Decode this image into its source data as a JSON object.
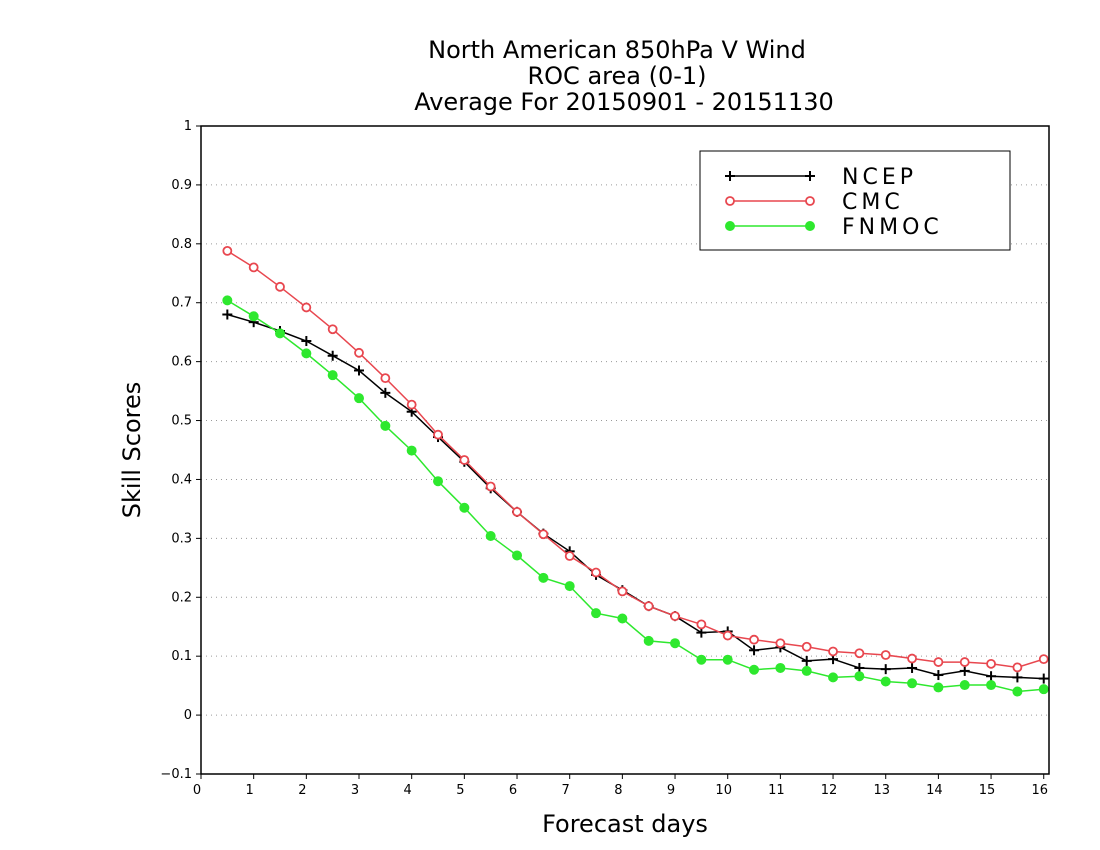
{
  "chart_data": {
    "type": "line",
    "title": "North American 850hPa V Wind",
    "subtitle": "ROC area (0-1)",
    "subtitle2": "Average For 20150901 - 20151130",
    "xlabel": "Forecast days",
    "ylabel": "Skill Scores",
    "xlim": [
      0,
      16.1
    ],
    "ylim": [
      -0.1,
      1
    ],
    "xticks": [
      0,
      1,
      2,
      3,
      4,
      5,
      6,
      7,
      8,
      9,
      10,
      11,
      12,
      13,
      14,
      15,
      16
    ],
    "yticks": [
      -0.1,
      0,
      0.1,
      0.2,
      0.3,
      0.4,
      0.5,
      0.6,
      0.7,
      0.8,
      0.9,
      1
    ],
    "ytick_labels": [
      "−0.1",
      "0",
      "0.1",
      "0.2",
      "0.3",
      "0.4",
      "0.5",
      "0.6",
      "0.7",
      "0.8",
      "0.9",
      "1"
    ],
    "grid": "horizontal dotted",
    "legend_position": "top-right",
    "x": [
      0.5,
      1,
      1.5,
      2,
      2.5,
      3,
      3.5,
      4,
      4.5,
      5,
      5.5,
      6,
      6.5,
      7,
      7.5,
      8,
      8.5,
      9,
      9.5,
      10,
      10.5,
      11,
      11.5,
      12,
      12.5,
      13,
      13.5,
      14,
      14.5,
      15,
      15.5,
      16
    ],
    "series": [
      {
        "name": "NCEP",
        "color": "#000000",
        "marker": "plus",
        "values": [
          0.68,
          0.667,
          0.652,
          0.635,
          0.61,
          0.585,
          0.547,
          0.515,
          0.472,
          0.43,
          0.385,
          0.345,
          0.308,
          0.278,
          0.238,
          0.212,
          0.185,
          0.168,
          0.14,
          0.142,
          0.11,
          0.115,
          0.092,
          0.095,
          0.08,
          0.078,
          0.08,
          0.068,
          0.075,
          0.066,
          0.064,
          0.062
        ]
      },
      {
        "name": "CMC",
        "color": "#e8474f",
        "marker": "open-circle",
        "values": [
          0.788,
          0.76,
          0.727,
          0.692,
          0.655,
          0.615,
          0.572,
          0.527,
          0.476,
          0.433,
          0.388,
          0.345,
          0.307,
          0.27,
          0.242,
          0.21,
          0.185,
          0.168,
          0.154,
          0.135,
          0.128,
          0.122,
          0.116,
          0.108,
          0.105,
          0.102,
          0.096,
          0.09,
          0.09,
          0.087,
          0.081,
          0.095
        ]
      },
      {
        "name": "FNMOC",
        "color": "#2ee82e",
        "marker": "filled-circle",
        "values": [
          0.704,
          0.677,
          0.648,
          0.614,
          0.577,
          0.538,
          0.491,
          0.449,
          0.397,
          0.352,
          0.304,
          0.271,
          0.233,
          0.219,
          0.173,
          0.164,
          0.126,
          0.122,
          0.094,
          0.094,
          0.077,
          0.08,
          0.075,
          0.064,
          0.066,
          0.057,
          0.054,
          0.047,
          0.051,
          0.051,
          0.04,
          0.044
        ]
      }
    ]
  }
}
